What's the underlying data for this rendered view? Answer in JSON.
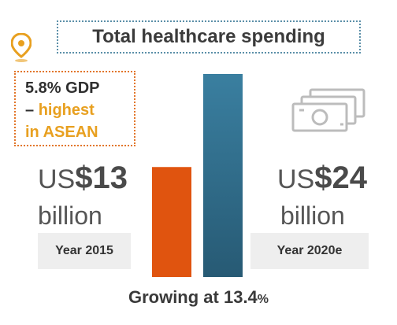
{
  "title": "Total healthcare spending",
  "callout": {
    "line1": "5.8% GDP",
    "dash": "–",
    "line2": "highest",
    "line3": "in ASEAN"
  },
  "left": {
    "currency": "US",
    "amount": "$13",
    "unit": "billion",
    "year": "Year 2015"
  },
  "right": {
    "currency": "US",
    "amount": "$24",
    "unit": "billion",
    "year": "Year 2020e"
  },
  "growth": {
    "text": "Growing at 13.4",
    "pct": "%"
  },
  "colors": {
    "bar_2015": "#e0540f",
    "bar_2020": "#2e6b88",
    "bar_2020_top": "#3a7fa0",
    "accent_orange": "#e8a020"
  },
  "chart_data": {
    "type": "bar",
    "categories": [
      "Year 2015",
      "Year 2020e"
    ],
    "values": [
      13,
      24
    ],
    "ylim": [
      0,
      24
    ],
    "title": "Total healthcare spending",
    "xlabel": "",
    "ylabel": ""
  }
}
